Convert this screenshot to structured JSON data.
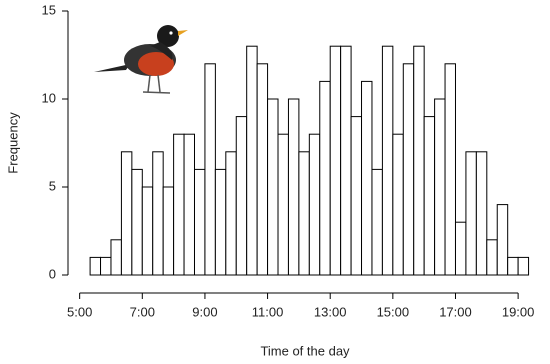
{
  "chart_data": {
    "type": "histogram",
    "x_label": "Time of the day",
    "y_label": "Frequency",
    "bins": [
      320,
      340,
      360,
      380,
      400,
      420,
      440,
      460,
      480,
      500,
      520,
      540,
      560,
      580,
      600,
      620,
      640,
      660,
      680,
      700,
      720,
      740,
      760,
      780,
      800,
      820,
      840,
      860,
      880,
      900,
      920,
      940,
      960,
      980,
      1000,
      1020,
      1040,
      1060,
      1080,
      1100,
      1120,
      1140,
      1160
    ],
    "values": [
      1,
      1,
      2,
      7,
      6,
      5,
      7,
      5,
      8,
      8,
      6,
      12,
      6,
      7,
      9,
      13,
      12,
      10,
      8,
      10,
      7,
      8,
      11,
      13,
      13,
      9,
      11,
      6,
      13,
      8,
      12,
      13,
      9,
      10,
      12,
      3,
      7,
      7,
      2,
      4,
      1,
      1
    ],
    "color": "#ffffff",
    "edgecolor": "#000000",
    "xlim": [
      270,
      1180
    ],
    "xticks": [
      {
        "value": 300,
        "label": "5:00"
      },
      {
        "value": 420,
        "label": "7:00"
      },
      {
        "value": 540,
        "label": "9:00"
      },
      {
        "value": 660,
        "label": "11:00"
      },
      {
        "value": 780,
        "label": "13:00"
      },
      {
        "value": 900,
        "label": "15:00"
      },
      {
        "value": 1020,
        "label": "17:00"
      },
      {
        "value": 1140,
        "label": "19:00"
      }
    ],
    "ylim": [
      0,
      15
    ],
    "yticks": [
      0,
      5,
      10,
      15
    ],
    "grid": false
  }
}
